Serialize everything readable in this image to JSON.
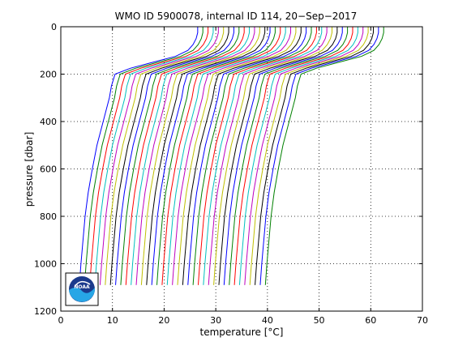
{
  "chart_data": {
    "type": "line",
    "title": "WMO ID 5900078, internal ID 114, 20−Sep−2017",
    "xlabel": "temperature [°C]",
    "ylabel": "pressure [dbar]",
    "xlim": [
      0,
      70
    ],
    "ylim": [
      1200,
      0
    ],
    "y_reversed": true,
    "grid": true,
    "grid_style": "dotted",
    "xticks": [
      0,
      10,
      20,
      30,
      40,
      50,
      60,
      70
    ],
    "yticks": [
      0,
      200,
      400,
      600,
      800,
      1000,
      1200
    ],
    "xtick_labels": [
      "0",
      "10",
      "20",
      "30",
      "40",
      "50",
      "60",
      "70"
    ],
    "ytick_labels": [
      "0",
      "200",
      "400",
      "600",
      "800",
      "1000",
      "1200"
    ],
    "series_colors": [
      "#0000ff",
      "#008000",
      "#ff0000",
      "#00bfbf",
      "#bf00bf",
      "#bfbf00",
      "#000000"
    ],
    "profile_count": 37,
    "profile_offset_step": 1,
    "profile_base": {
      "pressure": [
        0,
        25,
        50,
        75,
        100,
        125,
        150,
        175,
        200,
        250,
        300,
        400,
        500,
        600,
        700,
        800,
        900,
        1000,
        1090
      ],
      "temperature": [
        26.5,
        26.5,
        26.2,
        25.6,
        24.6,
        22.2,
        17.8,
        13.5,
        10.5,
        9.8,
        9.4,
        8.2,
        7.0,
        6.1,
        5.3,
        4.7,
        4.3,
        3.9,
        3.6
      ]
    }
  },
  "logo": {
    "name": "NOAA",
    "text": "NOAA",
    "colors": [
      "#1b3a8c",
      "#27a6e6",
      "#ffffff"
    ]
  }
}
